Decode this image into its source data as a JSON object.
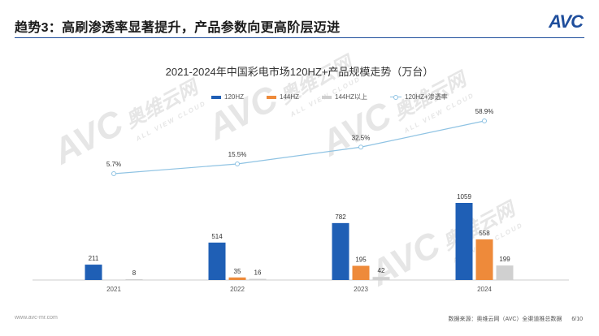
{
  "header": {
    "title": "趋势3：高刷渗透率显著提升，产品参数向更高阶层迈进",
    "logo_text": "AVC",
    "accent_color": "#1f4e9c"
  },
  "watermark": {
    "brand": "AVC",
    "brand_cn": "奥维云网",
    "brand_en": "ALL VIEW CLOUD"
  },
  "chart_data": {
    "type": "bar",
    "title": "2021-2024年中国彩电市场120HZ+产品规模走势（万台）",
    "categories": [
      "2021",
      "2022",
      "2023",
      "2024"
    ],
    "series": [
      {
        "name": "120HZ",
        "values": [
          211,
          514,
          782,
          1059
        ],
        "color": "#1f5fb5"
      },
      {
        "name": "144HZ",
        "values": [
          null,
          35,
          195,
          558
        ],
        "color": "#ee8a3a"
      },
      {
        "name": "144HZ以上",
        "values": [
          8,
          16,
          42,
          199
        ],
        "color": "#d0d0d0"
      }
    ],
    "line_series": {
      "name": "120HZ+渗透率",
      "values": [
        5.7,
        15.5,
        32.5,
        58.9
      ],
      "labels": [
        "5.7%",
        "15.5%",
        "32.5%",
        "58.9%"
      ],
      "color": "#8fc3e3"
    },
    "legend_position": "top",
    "grid": false
  },
  "footer": {
    "website": "www.avc-mr.com",
    "source": "数据来源：奥维云网（AVC）全渠道推总数据",
    "page": "6/10"
  }
}
